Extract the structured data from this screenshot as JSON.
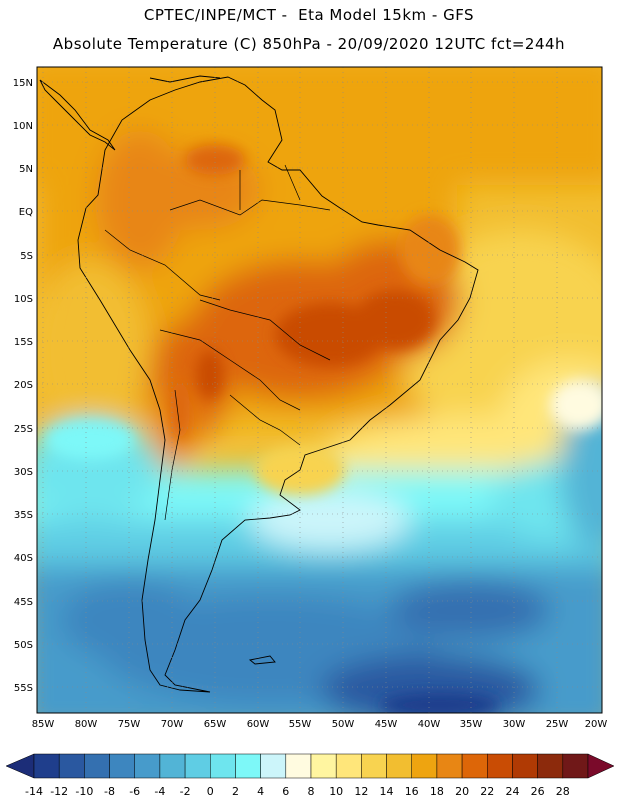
{
  "title_line1": "CPTEC/INPE/MCT -  Eta Model 15km - GFS",
  "title_line2": "Absolute Temperature (C) 850hPa - 20/09/2020 12UTC fct=244h",
  "lat_labels": [
    "15N",
    "10N",
    "5N",
    "EQ",
    "5S",
    "10S",
    "15S",
    "20S",
    "25S",
    "30S",
    "35S",
    "40S",
    "45S",
    "50S",
    "55S"
  ],
  "lon_labels": [
    "85W",
    "80W",
    "75W",
    "70W",
    "65W",
    "60W",
    "55W",
    "50W",
    "45W",
    "40W",
    "35W",
    "30W",
    "25W",
    "20W"
  ],
  "colorbar": {
    "ticks": [
      "-14",
      "-12",
      "-10",
      "-8",
      "-6",
      "-4",
      "-2",
      "0",
      "2",
      "4",
      "6",
      "8",
      "10",
      "12",
      "14",
      "16",
      "18",
      "20",
      "22",
      "24",
      "26",
      "28"
    ],
    "colors": [
      "#1f3e8c",
      "#2a58a0",
      "#3470b0",
      "#3d86bf",
      "#479bcb",
      "#52b4d6",
      "#5fcde4",
      "#6ee5ee",
      "#7df8f8",
      "#ccf5fa",
      "#fffbe0",
      "#fff5a0",
      "#ffe67a",
      "#f8d350",
      "#f2be30",
      "#eea410",
      "#e88614",
      "#dd6608",
      "#c94c04",
      "#b03a04",
      "#8c2a0c",
      "#701818"
    ],
    "under_color": "#1c2d78",
    "over_color": "#7a0a2a"
  }
}
